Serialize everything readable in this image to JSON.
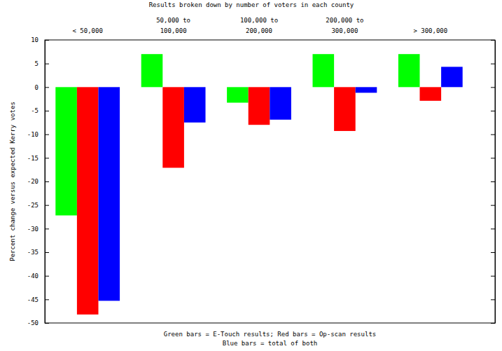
{
  "chart_data": {
    "type": "bar",
    "title": "Results broken down by number of voters in each county",
    "categories": [
      "< 50,000",
      "50,000 to\n100,000",
      "100,000 to\n200,000",
      "200,000 to\n300,000",
      "> 300,000"
    ],
    "series": [
      {
        "color": "#00ff00",
        "values": [
          -27.2,
          7,
          -3.3,
          7,
          7
        ]
      },
      {
        "color": "#ff0000",
        "values": [
          -48.2,
          -17.1,
          -8,
          -9.3,
          -2.9
        ]
      },
      {
        "color": "#0000ff",
        "values": [
          -45.3,
          -7.5,
          -6.9,
          -1.2,
          4.3
        ]
      }
    ],
    "y_label": "Percent change versus expected Kerry votes",
    "annotations": [
      "Green bars = E-Touch results; Red bars = Op-scan results",
      "Blue bars = total of both"
    ],
    "ylim": [
      -50,
      10
    ],
    "yticks": [
      -50,
      -45,
      -40,
      -35,
      -30,
      -25,
      -20,
      -15,
      -10,
      -5,
      0,
      5,
      10
    ],
    "grid": false
  }
}
